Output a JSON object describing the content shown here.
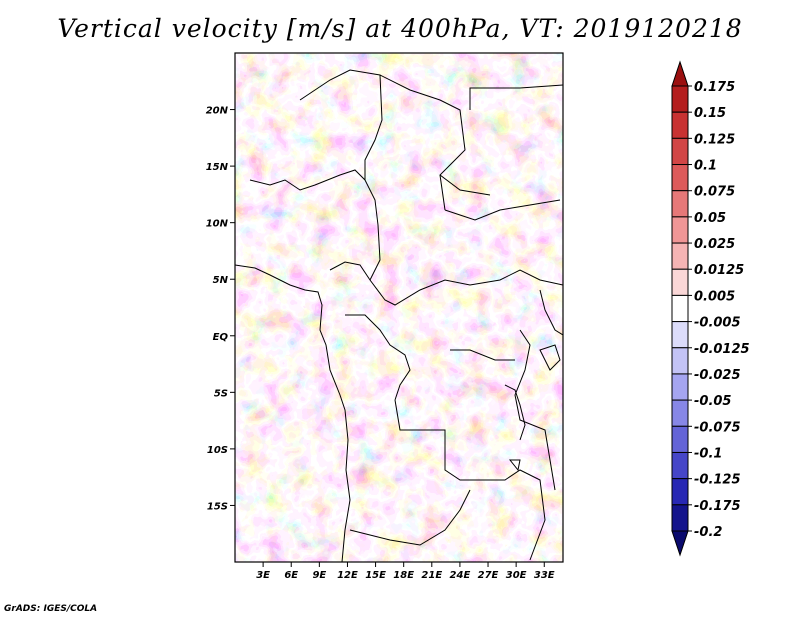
{
  "title": "Vertical velocity [m/s] at 400hPa, VT: 2019120218",
  "credit": "GrADS: IGES/COLA",
  "map": {
    "lon_range": [
      0,
      35
    ],
    "lat_range": [
      -20,
      25
    ],
    "lat_ticks": [
      {
        "value": 20,
        "label": "20N"
      },
      {
        "value": 15,
        "label": "15N"
      },
      {
        "value": 10,
        "label": "10N"
      },
      {
        "value": 5,
        "label": "5N"
      },
      {
        "value": 0,
        "label": "EQ"
      },
      {
        "value": -5,
        "label": "5S"
      },
      {
        "value": -10,
        "label": "10S"
      },
      {
        "value": -15,
        "label": "15S"
      }
    ],
    "lon_ticks": [
      {
        "value": 3,
        "label": "3E"
      },
      {
        "value": 6,
        "label": "6E"
      },
      {
        "value": 9,
        "label": "9E"
      },
      {
        "value": 12,
        "label": "12E"
      },
      {
        "value": 15,
        "label": "15E"
      },
      {
        "value": 18,
        "label": "18E"
      },
      {
        "value": 21,
        "label": "21E"
      },
      {
        "value": 24,
        "label": "24E"
      },
      {
        "value": 27,
        "label": "27E"
      },
      {
        "value": 30,
        "label": "30E"
      },
      {
        "value": 33,
        "label": "33E"
      }
    ]
  },
  "colorbar": {
    "labels": [
      "0.175",
      "0.15",
      "0.125",
      "0.1",
      "0.075",
      "0.05",
      "0.025",
      "0.0125",
      "0.005",
      "-0.005",
      "-0.0125",
      "-0.025",
      "-0.05",
      "-0.075",
      "-0.1",
      "-0.125",
      "-0.175",
      "-0.2"
    ],
    "colors": [
      "#9b1010",
      "#b41e1e",
      "#c83232",
      "#d24646",
      "#dc5a5a",
      "#e67878",
      "#f09696",
      "#f5b4b4",
      "#fad7d7",
      "#ffffff",
      "#dcdcfa",
      "#c3c3f5",
      "#a5a5f0",
      "#8787e6",
      "#6464d7",
      "#4646c8",
      "#2828b4",
      "#14148c",
      "#0a0a6e"
    ]
  }
}
